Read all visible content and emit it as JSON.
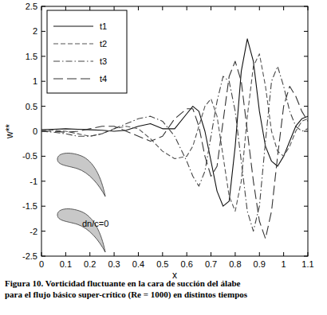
{
  "chart_data": {
    "type": "line",
    "caption": [
      "Figura 10. Vorticidad fluctuante en la cara de succión del álabe",
      "para el flujo básico super-crítico (Re = 1000) en distintos tiempos"
    ],
    "x_label": "x",
    "y_label": "w**",
    "annotations": [
      {
        "text": "dn/c=0"
      }
    ],
    "x": [
      0,
      0.05,
      0.1,
      0.15,
      0.2,
      0.25,
      0.3,
      0.35,
      0.4,
      0.45,
      0.5,
      0.55,
      0.6,
      0.625,
      0.65,
      0.675,
      0.7,
      0.725,
      0.75,
      0.775,
      0.8,
      0.825,
      0.85,
      0.875,
      0.9,
      0.925,
      0.95,
      0.975,
      1.0,
      1.025,
      1.05,
      1.075,
      1.1
    ],
    "series": [
      {
        "name": "t1",
        "color": "#111111",
        "line_style": "solid",
        "values": [
          0.03,
          0.04,
          0.05,
          0.04,
          0.03,
          0.02,
          0.0,
          0.02,
          0.1,
          0.15,
          0.05,
          0.05,
          0.35,
          0.5,
          0.4,
          0.0,
          -0.6,
          -1.2,
          -1.5,
          -1.4,
          -0.3,
          1.2,
          1.85,
          1.4,
          0.4,
          -0.3,
          -0.6,
          -0.7,
          -0.5,
          -0.2,
          0.1,
          0.25,
          0.3
        ]
      },
      {
        "name": "t2",
        "color": "#555555",
        "line_style": "dashed",
        "values": [
          0.02,
          0.02,
          0.0,
          -0.05,
          -0.1,
          -0.05,
          0.05,
          0.1,
          0.05,
          -0.15,
          -0.4,
          -0.55,
          -0.5,
          -0.3,
          0.1,
          0.5,
          0.65,
          0.3,
          -0.5,
          -1.3,
          -1.6,
          -1.0,
          0.3,
          1.3,
          1.55,
          0.9,
          0.0,
          -0.4,
          -0.5,
          -0.3,
          0.0,
          0.2,
          0.25
        ]
      },
      {
        "name": "t3",
        "color": "#444444",
        "line_style": "dashdot",
        "values": [
          0.0,
          -0.02,
          -0.05,
          -0.1,
          -0.1,
          -0.05,
          0.05,
          0.15,
          0.25,
          0.3,
          0.2,
          -0.1,
          -0.6,
          -0.9,
          -1.1,
          -0.8,
          -0.1,
          0.6,
          1.1,
          1.0,
          0.4,
          -0.6,
          -1.6,
          -2.0,
          -1.5,
          -0.2,
          1.0,
          1.3,
          0.9,
          0.4,
          0.1,
          0.0,
          0.05
        ]
      },
      {
        "name": "t4",
        "color": "#333333",
        "line_style": "longdash",
        "values": [
          0.0,
          0.0,
          -0.02,
          0.0,
          0.05,
          0.1,
          0.1,
          0.0,
          -0.1,
          -0.2,
          -0.1,
          0.25,
          0.45,
          0.45,
          0.1,
          -0.5,
          -0.9,
          -0.7,
          0.2,
          1.1,
          1.4,
          1.0,
          0.0,
          -1.0,
          -1.8,
          -2.15,
          -1.6,
          -0.5,
          0.5,
          0.9,
          0.7,
          0.4,
          0.2
        ]
      }
    ],
    "xlim": [
      0,
      1.1
    ],
    "xticks": [
      0,
      0.1,
      0.2,
      0.3,
      0.4,
      0.5,
      0.6,
      0.7,
      0.8,
      0.9,
      1,
      1.1
    ],
    "ylim": [
      -2.5,
      2.5
    ],
    "yticks": [
      -2.5,
      -2,
      -1.5,
      -1,
      -0.5,
      0,
      0.5,
      1,
      1.5,
      2,
      2.5
    ],
    "grid": false,
    "legend": "upper left"
  }
}
